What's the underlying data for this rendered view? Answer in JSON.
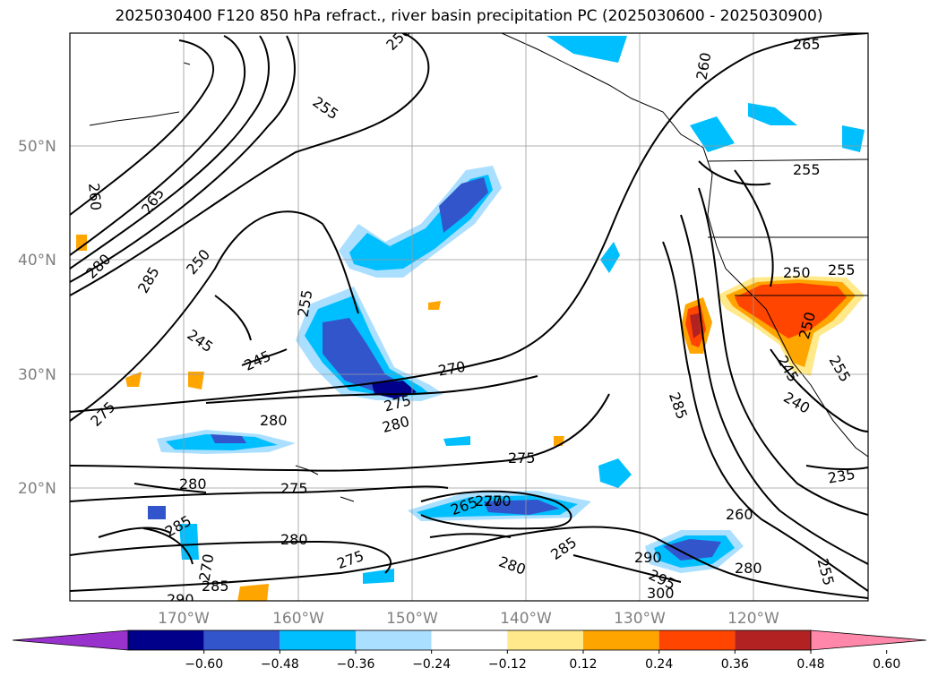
{
  "title": "2025030400 F120 850 hPa refract., river basin precipitation PC (2025030600 - 2025030900)",
  "map": {
    "lat_labels": [
      "50°N",
      "40°N",
      "30°N",
      "20°N"
    ],
    "lon_labels": [
      "170°W",
      "160°W",
      "150°W",
      "140°W",
      "130°W",
      "120°W"
    ],
    "contour_labels": [
      "265",
      "260",
      "255",
      "250",
      "245",
      "255",
      "260",
      "265",
      "280",
      "285",
      "250",
      "245",
      "275",
      "280",
      "270",
      "275",
      "280",
      "275",
      "280",
      "285",
      "270",
      "275",
      "280",
      "285",
      "290",
      "275",
      "270",
      "265",
      "270",
      "285",
      "280",
      "290",
      "295",
      "300",
      "260",
      "280",
      "255",
      "235",
      "240",
      "245",
      "250",
      "255",
      "255",
      "250",
      "255",
      "285"
    ]
  },
  "colorbar": {
    "ticks": [
      "−0.60",
      "−0.48",
      "−0.36",
      "−0.24",
      "−0.12",
      "0.12",
      "0.24",
      "0.36",
      "0.48",
      "0.60"
    ],
    "colors": [
      "#9932cc",
      "#00008b",
      "#3355cc",
      "#00bfff",
      "#aadfff",
      "#ffffff",
      "#ffe98a",
      "#ffa500",
      "#ff4500",
      "#b22222",
      "#ff88aa"
    ]
  }
}
